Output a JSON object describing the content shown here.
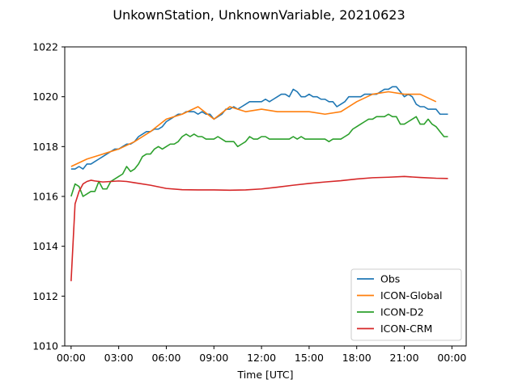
{
  "chart_data": {
    "type": "line",
    "title": "UnkownStation, UnknownVariable, 20210623",
    "xlabel": "Time [UTC]",
    "ylabel": "",
    "xlim": [
      -0.4,
      24.9
    ],
    "ylim": [
      1010,
      1022
    ],
    "xticks": [
      0,
      3,
      6,
      9,
      12,
      15,
      18,
      21,
      24
    ],
    "xtick_labels": [
      "00:00",
      "03:00",
      "06:00",
      "09:00",
      "12:00",
      "15:00",
      "18:00",
      "21:00",
      "00:00"
    ],
    "yticks": [
      1010,
      1012,
      1014,
      1016,
      1018,
      1020,
      1022
    ],
    "ytick_labels": [
      "1010",
      "1012",
      "1014",
      "1016",
      "1018",
      "1020",
      "1022"
    ],
    "grid": false,
    "legend_position": "lower-right",
    "series": [
      {
        "name": "Obs",
        "color": "#1f77b4",
        "points": [
          [
            0,
            1017.1
          ],
          [
            0.25,
            1017.1
          ],
          [
            0.5,
            1017.2
          ],
          [
            0.75,
            1017.1
          ],
          [
            1.0,
            1017.3
          ],
          [
            1.25,
            1017.3
          ],
          [
            1.5,
            1017.4
          ],
          [
            1.75,
            1017.5
          ],
          [
            2.0,
            1017.6
          ],
          [
            2.25,
            1017.7
          ],
          [
            2.5,
            1017.8
          ],
          [
            2.75,
            1017.9
          ],
          [
            3.0,
            1017.9
          ],
          [
            3.25,
            1018.0
          ],
          [
            3.5,
            1018.1
          ],
          [
            3.75,
            1018.1
          ],
          [
            4.0,
            1018.2
          ],
          [
            4.25,
            1018.4
          ],
          [
            4.5,
            1018.5
          ],
          [
            4.75,
            1018.6
          ],
          [
            5.0,
            1018.6
          ],
          [
            5.25,
            1018.7
          ],
          [
            5.5,
            1018.7
          ],
          [
            5.75,
            1018.8
          ],
          [
            6.0,
            1019.0
          ],
          [
            6.25,
            1019.1
          ],
          [
            6.5,
            1019.2
          ],
          [
            6.75,
            1019.3
          ],
          [
            7.0,
            1019.3
          ],
          [
            7.25,
            1019.4
          ],
          [
            7.5,
            1019.4
          ],
          [
            7.75,
            1019.4
          ],
          [
            8.0,
            1019.3
          ],
          [
            8.25,
            1019.4
          ],
          [
            8.5,
            1019.3
          ],
          [
            8.75,
            1019.3
          ],
          [
            9.0,
            1019.1
          ],
          [
            9.25,
            1019.2
          ],
          [
            9.5,
            1019.3
          ],
          [
            9.75,
            1019.5
          ],
          [
            10.0,
            1019.5
          ],
          [
            10.25,
            1019.6
          ],
          [
            10.5,
            1019.5
          ],
          [
            10.75,
            1019.6
          ],
          [
            11.0,
            1019.7
          ],
          [
            11.25,
            1019.8
          ],
          [
            11.5,
            1019.8
          ],
          [
            11.75,
            1019.8
          ],
          [
            12.0,
            1019.8
          ],
          [
            12.25,
            1019.9
          ],
          [
            12.5,
            1019.8
          ],
          [
            12.75,
            1019.9
          ],
          [
            13.0,
            1020.0
          ],
          [
            13.25,
            1020.1
          ],
          [
            13.5,
            1020.1
          ],
          [
            13.75,
            1020.0
          ],
          [
            14.0,
            1020.3
          ],
          [
            14.25,
            1020.2
          ],
          [
            14.5,
            1020.0
          ],
          [
            14.75,
            1020.0
          ],
          [
            15.0,
            1020.1
          ],
          [
            15.25,
            1020.0
          ],
          [
            15.5,
            1020.0
          ],
          [
            15.75,
            1019.9
          ],
          [
            16.0,
            1019.9
          ],
          [
            16.25,
            1019.8
          ],
          [
            16.5,
            1019.8
          ],
          [
            16.75,
            1019.6
          ],
          [
            17.0,
            1019.7
          ],
          [
            17.25,
            1019.8
          ],
          [
            17.5,
            1020.0
          ],
          [
            17.75,
            1020.0
          ],
          [
            18.0,
            1020.0
          ],
          [
            18.25,
            1020.0
          ],
          [
            18.5,
            1020.1
          ],
          [
            18.75,
            1020.1
          ],
          [
            19.0,
            1020.1
          ],
          [
            19.25,
            1020.1
          ],
          [
            19.5,
            1020.2
          ],
          [
            19.75,
            1020.3
          ],
          [
            20.0,
            1020.3
          ],
          [
            20.25,
            1020.4
          ],
          [
            20.5,
            1020.4
          ],
          [
            20.75,
            1020.2
          ],
          [
            21.0,
            1020.0
          ],
          [
            21.25,
            1020.1
          ],
          [
            21.5,
            1020.0
          ],
          [
            21.75,
            1019.7
          ],
          [
            22.0,
            1019.6
          ],
          [
            22.25,
            1019.6
          ],
          [
            22.5,
            1019.5
          ],
          [
            22.75,
            1019.5
          ],
          [
            23.0,
            1019.5
          ],
          [
            23.25,
            1019.3
          ],
          [
            23.5,
            1019.3
          ],
          [
            23.75,
            1019.3
          ]
        ]
      },
      {
        "name": "ICON-Global",
        "color": "#ff7f0e",
        "points": [
          [
            0,
            1017.2
          ],
          [
            1,
            1017.5
          ],
          [
            2,
            1017.7
          ],
          [
            3,
            1017.9
          ],
          [
            4,
            1018.2
          ],
          [
            5,
            1018.6
          ],
          [
            6,
            1019.1
          ],
          [
            7,
            1019.3
          ],
          [
            8,
            1019.6
          ],
          [
            9,
            1019.1
          ],
          [
            10,
            1019.6
          ],
          [
            11,
            1019.4
          ],
          [
            12,
            1019.5
          ],
          [
            13,
            1019.4
          ],
          [
            14,
            1019.4
          ],
          [
            15,
            1019.4
          ],
          [
            16,
            1019.3
          ],
          [
            17,
            1019.4
          ],
          [
            18,
            1019.8
          ],
          [
            19,
            1020.1
          ],
          [
            20,
            1020.2
          ],
          [
            21,
            1020.1
          ],
          [
            22,
            1020.1
          ],
          [
            23,
            1019.8
          ]
        ]
      },
      {
        "name": "ICON-D2",
        "color": "#2ca02c",
        "points": [
          [
            0,
            1016.0
          ],
          [
            0.25,
            1016.5
          ],
          [
            0.5,
            1016.4
          ],
          [
            0.75,
            1016.0
          ],
          [
            1.0,
            1016.1
          ],
          [
            1.25,
            1016.2
          ],
          [
            1.5,
            1016.2
          ],
          [
            1.75,
            1016.6
          ],
          [
            2.0,
            1016.3
          ],
          [
            2.25,
            1016.3
          ],
          [
            2.5,
            1016.6
          ],
          [
            2.75,
            1016.7
          ],
          [
            3.0,
            1016.8
          ],
          [
            3.25,
            1016.9
          ],
          [
            3.5,
            1017.2
          ],
          [
            3.75,
            1017.0
          ],
          [
            4.0,
            1017.1
          ],
          [
            4.25,
            1017.3
          ],
          [
            4.5,
            1017.6
          ],
          [
            4.75,
            1017.7
          ],
          [
            5.0,
            1017.7
          ],
          [
            5.25,
            1017.9
          ],
          [
            5.5,
            1018.0
          ],
          [
            5.75,
            1017.9
          ],
          [
            6.0,
            1018.0
          ],
          [
            6.25,
            1018.1
          ],
          [
            6.5,
            1018.1
          ],
          [
            6.75,
            1018.2
          ],
          [
            7.0,
            1018.4
          ],
          [
            7.25,
            1018.5
          ],
          [
            7.5,
            1018.4
          ],
          [
            7.75,
            1018.5
          ],
          [
            8.0,
            1018.4
          ],
          [
            8.25,
            1018.4
          ],
          [
            8.5,
            1018.3
          ],
          [
            8.75,
            1018.3
          ],
          [
            9.0,
            1018.3
          ],
          [
            9.25,
            1018.4
          ],
          [
            9.5,
            1018.3
          ],
          [
            9.75,
            1018.2
          ],
          [
            10.0,
            1018.2
          ],
          [
            10.25,
            1018.2
          ],
          [
            10.5,
            1018.0
          ],
          [
            10.75,
            1018.1
          ],
          [
            11.0,
            1018.2
          ],
          [
            11.25,
            1018.4
          ],
          [
            11.5,
            1018.3
          ],
          [
            11.75,
            1018.3
          ],
          [
            12.0,
            1018.4
          ],
          [
            12.25,
            1018.4
          ],
          [
            12.5,
            1018.3
          ],
          [
            12.75,
            1018.3
          ],
          [
            13.0,
            1018.3
          ],
          [
            13.25,
            1018.3
          ],
          [
            13.5,
            1018.3
          ],
          [
            13.75,
            1018.3
          ],
          [
            14.0,
            1018.4
          ],
          [
            14.25,
            1018.3
          ],
          [
            14.5,
            1018.4
          ],
          [
            14.75,
            1018.3
          ],
          [
            15.0,
            1018.3
          ],
          [
            15.25,
            1018.3
          ],
          [
            15.5,
            1018.3
          ],
          [
            15.75,
            1018.3
          ],
          [
            16.0,
            1018.3
          ],
          [
            16.25,
            1018.2
          ],
          [
            16.5,
            1018.3
          ],
          [
            16.75,
            1018.3
          ],
          [
            17.0,
            1018.3
          ],
          [
            17.25,
            1018.4
          ],
          [
            17.5,
            1018.5
          ],
          [
            17.75,
            1018.7
          ],
          [
            18.0,
            1018.8
          ],
          [
            18.25,
            1018.9
          ],
          [
            18.5,
            1019.0
          ],
          [
            18.75,
            1019.1
          ],
          [
            19.0,
            1019.1
          ],
          [
            19.25,
            1019.2
          ],
          [
            19.5,
            1019.2
          ],
          [
            19.75,
            1019.2
          ],
          [
            20.0,
            1019.3
          ],
          [
            20.25,
            1019.2
          ],
          [
            20.5,
            1019.2
          ],
          [
            20.75,
            1018.9
          ],
          [
            21.0,
            1018.9
          ],
          [
            21.25,
            1019.0
          ],
          [
            21.5,
            1019.1
          ],
          [
            21.75,
            1019.2
          ],
          [
            22.0,
            1018.9
          ],
          [
            22.25,
            1018.9
          ],
          [
            22.5,
            1019.1
          ],
          [
            22.75,
            1018.9
          ],
          [
            23.0,
            1018.8
          ],
          [
            23.25,
            1018.6
          ],
          [
            23.5,
            1018.4
          ],
          [
            23.75,
            1018.4
          ]
        ]
      },
      {
        "name": "ICON-CRM",
        "color": "#d62728",
        "points": [
          [
            0,
            1012.6
          ],
          [
            0.25,
            1015.7
          ],
          [
            0.5,
            1016.2
          ],
          [
            0.75,
            1016.5
          ],
          [
            1.0,
            1016.6
          ],
          [
            1.25,
            1016.65
          ],
          [
            1.5,
            1016.62
          ],
          [
            2,
            1016.58
          ],
          [
            2.5,
            1016.6
          ],
          [
            3,
            1016.62
          ],
          [
            3.5,
            1016.6
          ],
          [
            4,
            1016.55
          ],
          [
            5,
            1016.45
          ],
          [
            6,
            1016.32
          ],
          [
            7,
            1016.27
          ],
          [
            8,
            1016.26
          ],
          [
            9,
            1016.26
          ],
          [
            10,
            1016.25
          ],
          [
            11,
            1016.26
          ],
          [
            12,
            1016.3
          ],
          [
            13,
            1016.37
          ],
          [
            14,
            1016.45
          ],
          [
            15,
            1016.52
          ],
          [
            16,
            1016.58
          ],
          [
            17,
            1016.63
          ],
          [
            18,
            1016.7
          ],
          [
            19,
            1016.75
          ],
          [
            20,
            1016.77
          ],
          [
            21,
            1016.8
          ],
          [
            22,
            1016.76
          ],
          [
            23,
            1016.73
          ],
          [
            23.75,
            1016.72
          ]
        ]
      }
    ]
  }
}
